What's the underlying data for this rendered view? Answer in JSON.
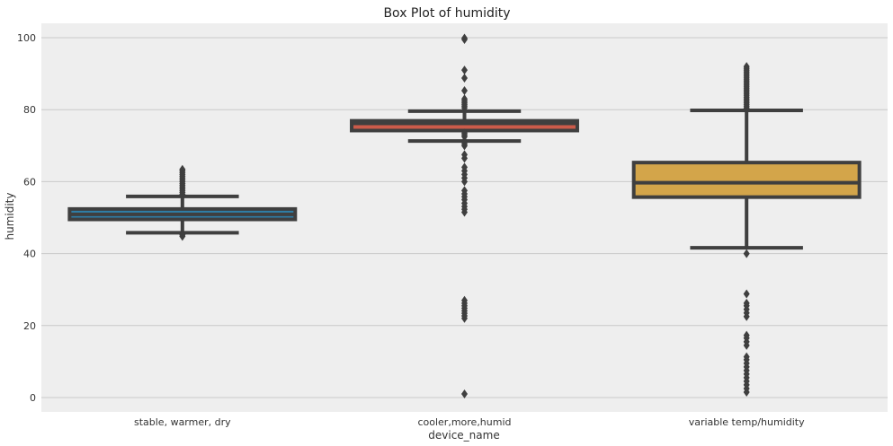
{
  "chart_data": {
    "type": "box",
    "title": "Box Plot of humidity",
    "xlabel": "device_name",
    "ylabel": "humidity",
    "ylim": [
      -4,
      104
    ],
    "yticks": [
      0,
      20,
      40,
      60,
      80,
      100
    ],
    "grid": "horizontal",
    "colors": {
      "plot_background": "#eeeeee",
      "grid": "#c9c9c9",
      "box_line": "#3f3f3f"
    },
    "categories": [
      "stable, warmer, dry",
      "cooler,more,humid",
      "variable temp/humidity"
    ],
    "boxes": [
      {
        "category": "stable, warmer, dry",
        "fill": "#2f7ea7",
        "q1": 49.5,
        "median": 50.9,
        "q3": 52.4,
        "whisker_low": 45.8,
        "whisker_high": 55.9,
        "outliers": [
          44.8,
          45.2,
          56.5,
          57.0,
          57.5,
          58.0,
          58.5,
          59.0,
          59.5,
          60.0,
          60.5,
          61.0,
          61.5,
          62.0,
          62.5,
          63.0,
          63.4
        ]
      },
      {
        "category": "cooler,more,humid",
        "fill": "#cc5b4a",
        "q1": 74.2,
        "median": 76.2,
        "q3": 76.9,
        "whisker_low": 71.3,
        "whisker_high": 79.6,
        "outliers": [
          1.0,
          22.0,
          22.7,
          23.4,
          24.1,
          24.8,
          25.5,
          26.2,
          27.0,
          51.5,
          52.3,
          53.1,
          54.0,
          55.0,
          55.8,
          56.6,
          57.5,
          60.0,
          61.0,
          62.0,
          63.0,
          64.0,
          66.5,
          67.5,
          70.0,
          70.5,
          71.0,
          72.5,
          73.0,
          73.5,
          80.5,
          81.0,
          81.5,
          82.0,
          82.5,
          83.0,
          85.3,
          88.8,
          91.0,
          99.5,
          99.9
        ]
      },
      {
        "category": "variable temp/humidity",
        "fill": "#d3a54a",
        "q1": 55.7,
        "median": 59.7,
        "q3": 65.3,
        "whisker_low": 41.6,
        "whisker_high": 79.8,
        "outliers": [
          1.5,
          2.5,
          3.5,
          4.5,
          5.5,
          6.5,
          7.5,
          8.5,
          9.5,
          10.5,
          11.3,
          14.5,
          15.5,
          16.5,
          17.3,
          22.5,
          23.5,
          24.5,
          25.5,
          26.2,
          28.8,
          40.0,
          80.5,
          81.0,
          81.5,
          82.0,
          82.5,
          83.0,
          83.5,
          84.0,
          84.5,
          85.0,
          85.5,
          86.0,
          86.5,
          87.0,
          87.5,
          88.0,
          88.5,
          89.0,
          89.5,
          90.0,
          90.5,
          91.0,
          91.5,
          92.0
        ]
      }
    ]
  }
}
